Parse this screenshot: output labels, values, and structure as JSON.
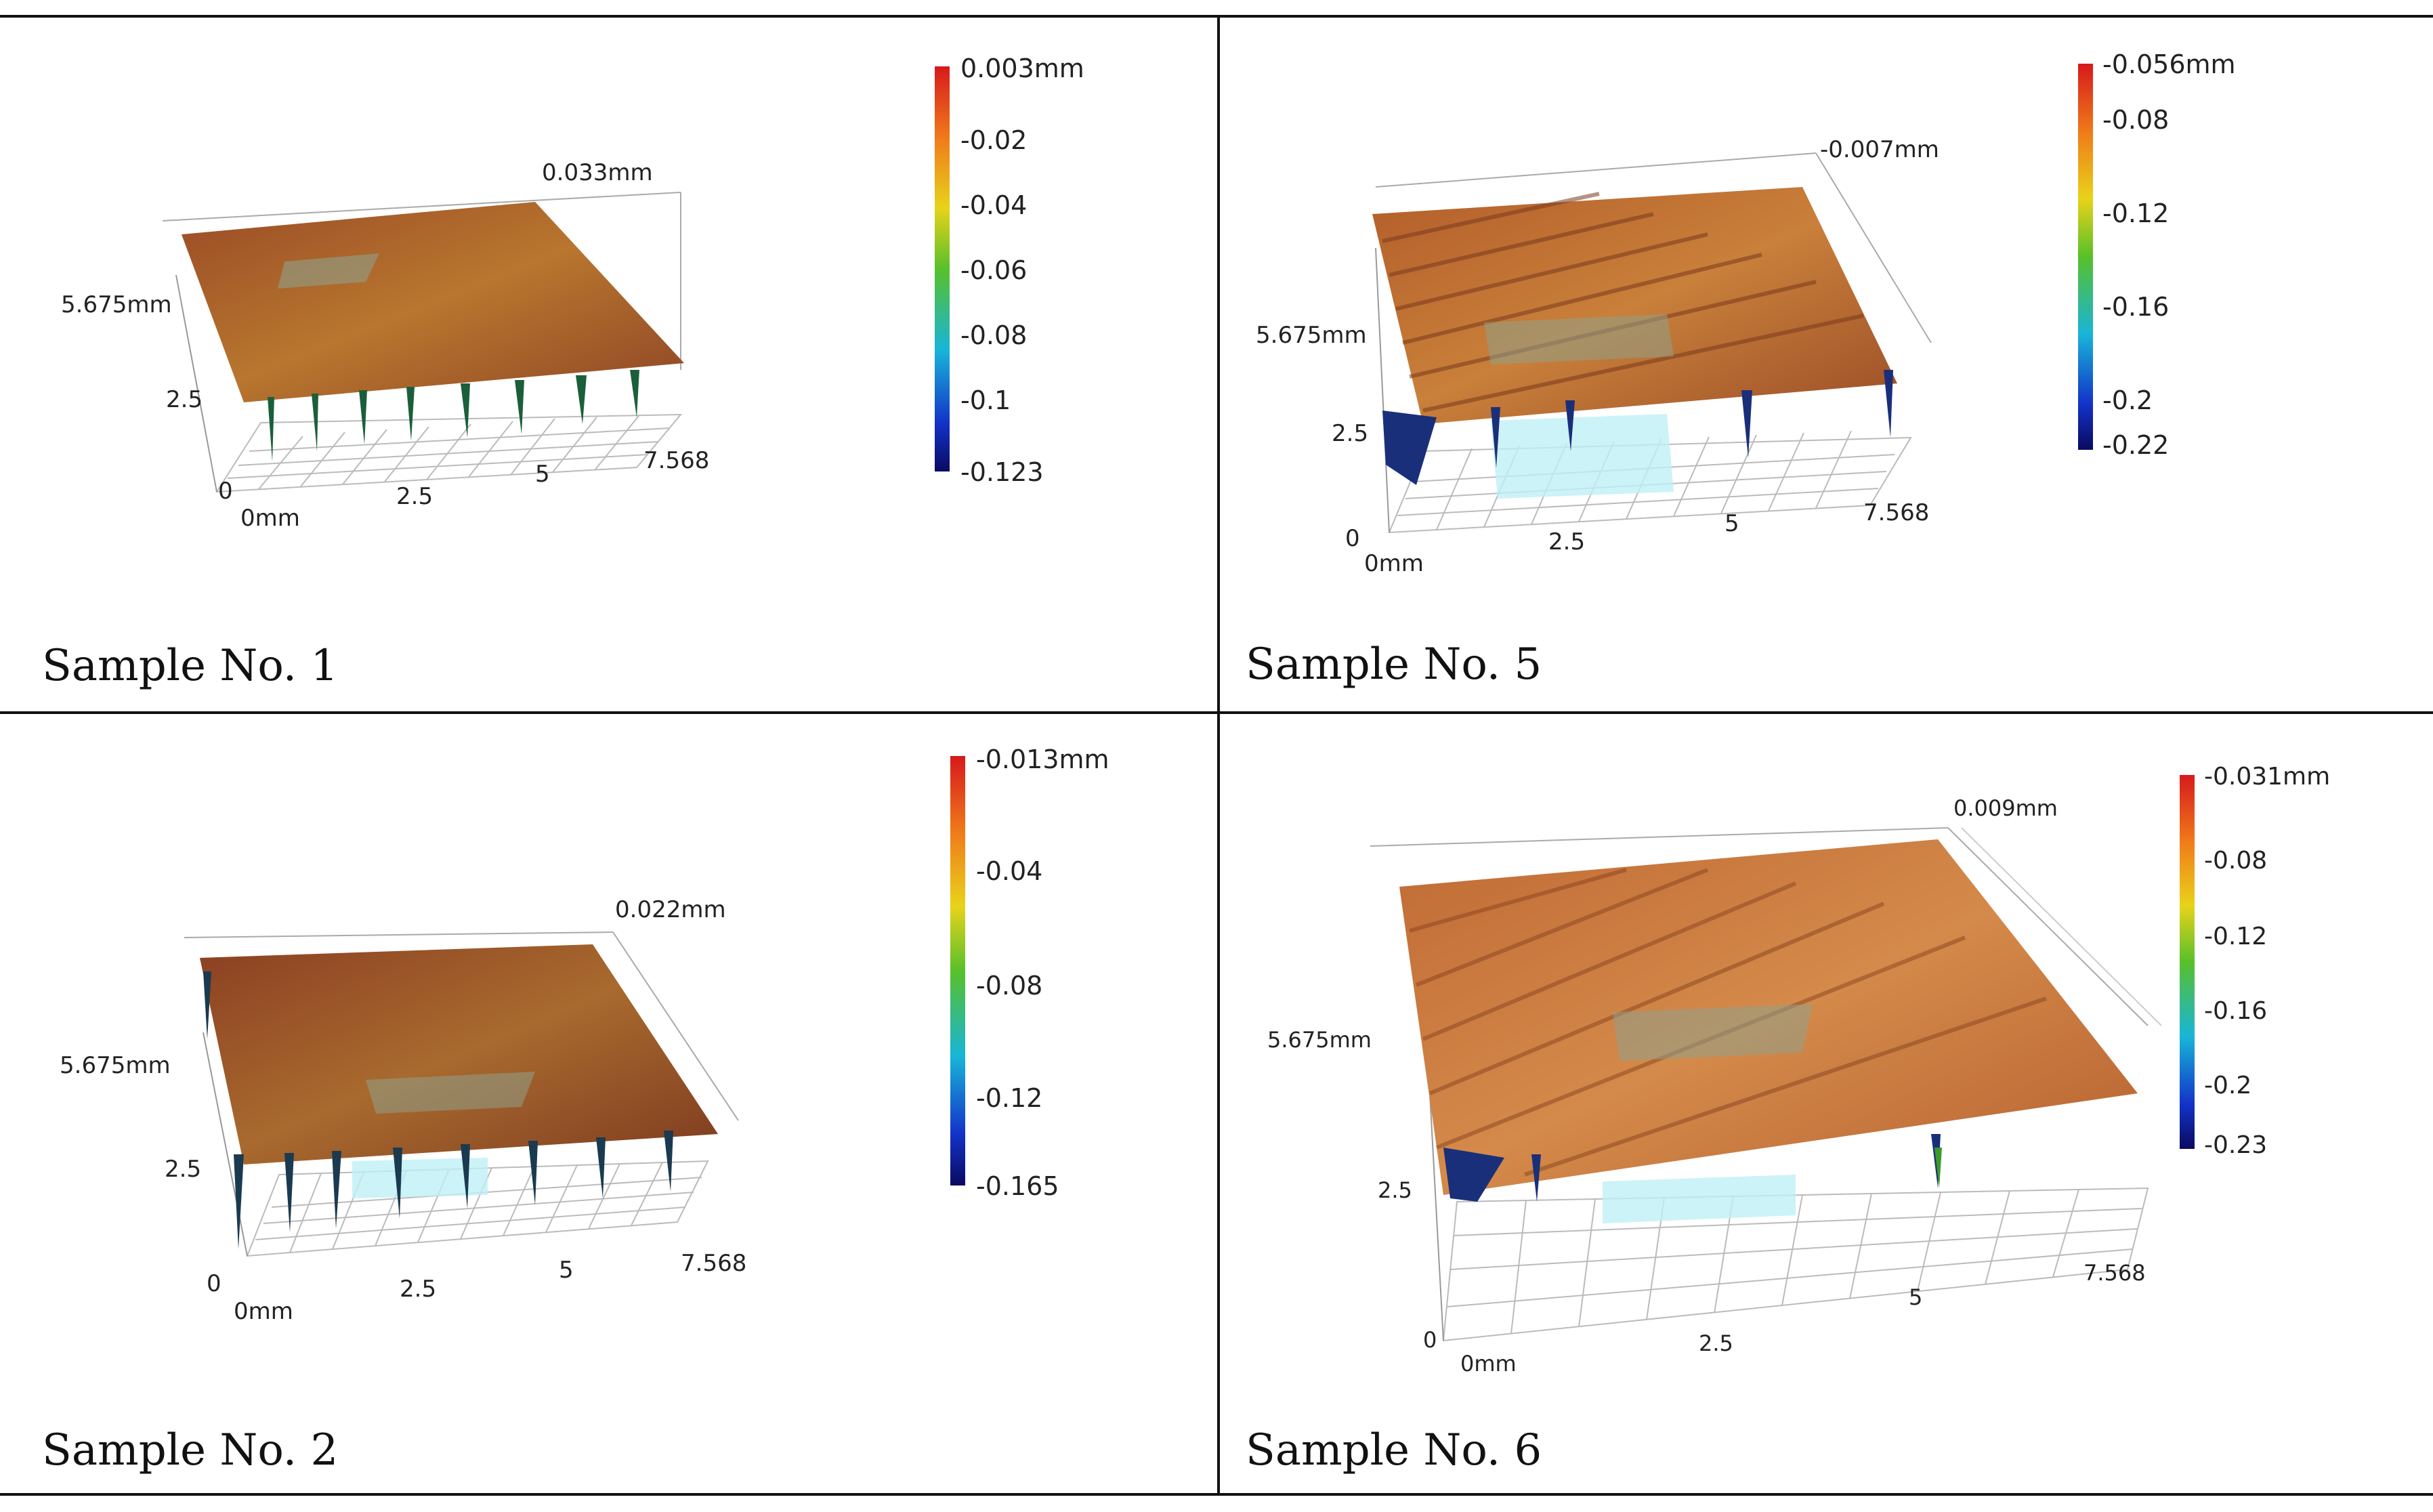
{
  "figure": {
    "panels": [
      {
        "caption": "Sample No. 1",
        "z_top_label": "0.033mm",
        "y_label": "5.675mm",
        "y_tick": "2.5",
        "origin_label": "0",
        "x_origin_label": "0mm",
        "x_ticks": [
          "2.5",
          "5",
          "7.568"
        ],
        "colorbar": {
          "max_label": "0.003mm",
          "ticks": [
            "-0.02",
            "-0.04",
            "-0.06",
            "-0.08",
            "-0.1"
          ],
          "min_label": "-0.123"
        }
      },
      {
        "caption": "Sample No. 5",
        "z_top_label": "-0.007mm",
        "y_label": "5.675mm",
        "y_tick": "2.5",
        "origin_label": "0",
        "x_origin_label": "0mm",
        "x_ticks": [
          "2.5",
          "5",
          "7.568"
        ],
        "colorbar": {
          "max_label": "-0.056mm",
          "ticks": [
            "-0.08",
            "-0.12",
            "-0.16",
            "-0.2"
          ],
          "min_label": "-0.22"
        }
      },
      {
        "caption": "Sample No. 2",
        "z_top_label": "0.022mm",
        "y_label": "5.675mm",
        "y_tick": "2.5",
        "origin_label": "0",
        "x_origin_label": "0mm",
        "x_ticks": [
          "2.5",
          "5",
          "7.568"
        ],
        "colorbar": {
          "max_label": "-0.013mm",
          "ticks": [
            "-0.04",
            "-0.08",
            "-0.12"
          ],
          "min_label": "-0.165"
        }
      },
      {
        "caption": "Sample No. 6",
        "z_top_label": "0.009mm",
        "y_label": "5.675mm",
        "y_tick": "2.5",
        "origin_label": "0",
        "x_origin_label": "0mm",
        "x_ticks": [
          "2.5",
          "5",
          "7.568"
        ],
        "colorbar": {
          "max_label": "-0.031mm",
          "ticks": [
            "-0.08",
            "-0.12",
            "-0.16",
            "-0.2"
          ],
          "min_label": "-0.23"
        }
      }
    ]
  }
}
